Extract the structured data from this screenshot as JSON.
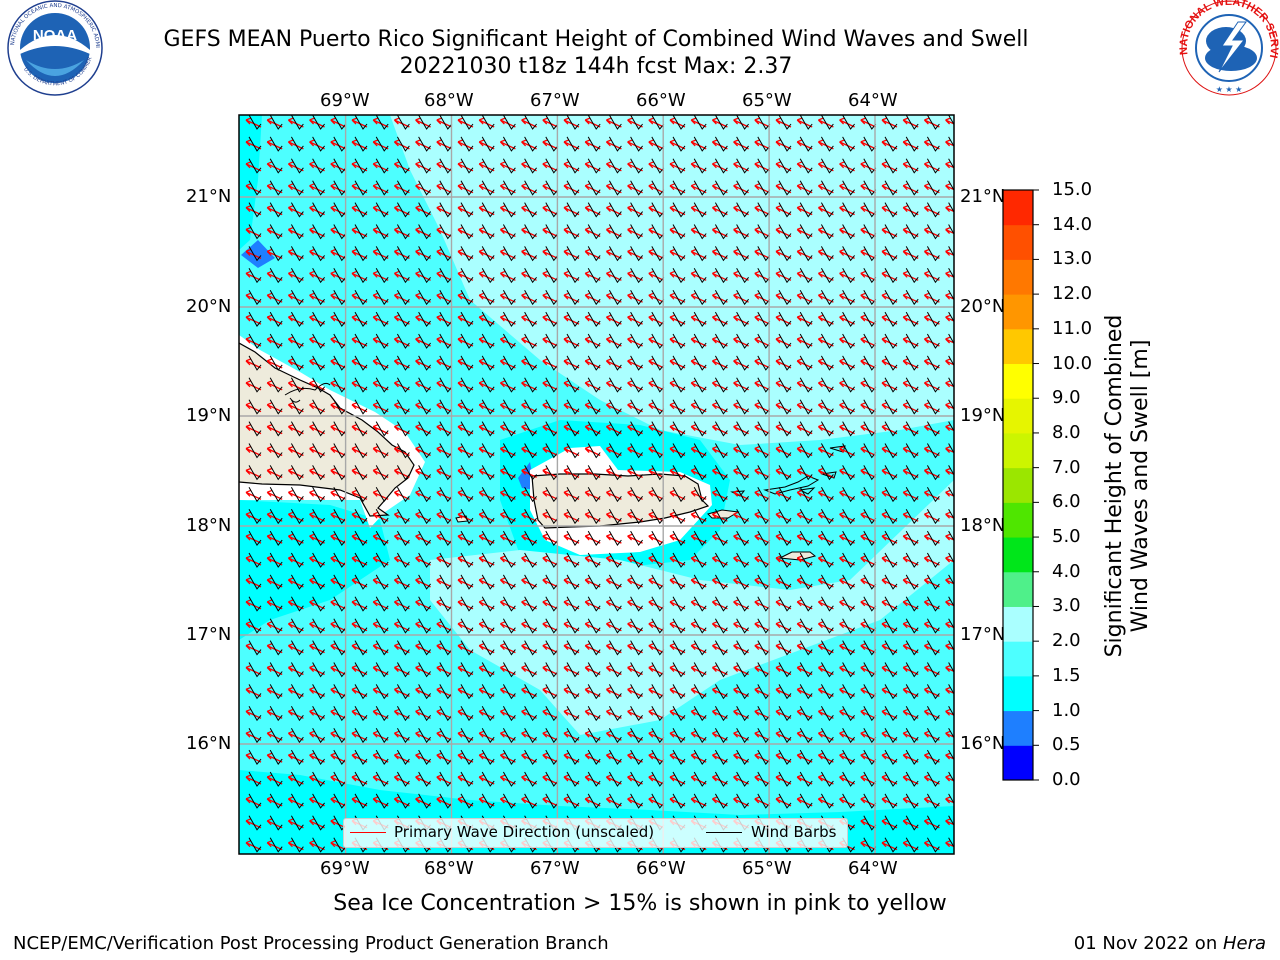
{
  "title": {
    "line1": "GEFS MEAN Puerto Rico Significant Height of Combined Wind Waves and Swell",
    "line2": "20221030 t18z 144h fcst   Max: 2.37"
  },
  "logos": {
    "left": {
      "icon": "noaa-logo",
      "text": "NOAA",
      "ring_text": "NATIONAL OCEANIC AND ATMOSPHERIC ADMINISTRATION · U.S. DEPARTMENT OF COMMERCE"
    },
    "right": {
      "icon": "nws-logo",
      "ring_text": "NATIONAL WEATHER SERVICE"
    }
  },
  "map": {
    "lon_labels": [
      "69°W",
      "68°W",
      "67°W",
      "66°W",
      "65°W",
      "64°W"
    ],
    "lat_labels": [
      "21°N",
      "20°N",
      "19°N",
      "18°N",
      "17°N",
      "16°N"
    ],
    "lon_range": [
      -70.0,
      -63.25
    ],
    "lat_range": [
      15.0,
      21.75
    ],
    "grid": true,
    "colors": {
      "ocean_1_0_1_5": "#00ffff",
      "ocean_1_5_2_0": "#4dffff",
      "ocean_2_0_3_0": "#aaffff",
      "ocean_0_5_1_0": "#1e7fff",
      "land": "#eeebdc",
      "coast_gap": "#ffffff",
      "wave_arrow": "#ff0000",
      "wind_barb": "#000000"
    }
  },
  "legend": {
    "wave_label": "Primary Wave Direction (unscaled)",
    "wind_label": "Wind Barbs"
  },
  "colorbar": {
    "title_line1": "Significant Height of Combined",
    "title_line2": "Wind Waves and Swell [m]",
    "ticks": [
      "15.0",
      "14.0",
      "13.0",
      "12.0",
      "11.0",
      "10.0",
      "9.0",
      "8.0",
      "7.0",
      "6.0",
      "5.0",
      "4.0",
      "3.0",
      "2.0",
      "1.5",
      "1.0",
      "0.5",
      "0.0"
    ],
    "colors_bottom_to_top": [
      "#0000ff",
      "#1e7fff",
      "#00ffff",
      "#4dffff",
      "#aaffff",
      "#4ff08a",
      "#00e61a",
      "#4fe600",
      "#9be600",
      "#ccf500",
      "#e6f500",
      "#ffff00",
      "#ffc800",
      "#ff9600",
      "#ff7800",
      "#ff5000",
      "#ff2800"
    ]
  },
  "footnote": "Sea Ice Concentration > 15% is shown in pink to yellow",
  "footer": {
    "left": "NCEP/EMC/Verification Post Processing Product Generation Branch",
    "right_date": "01 Nov 2022 on ",
    "right_host": "Hera"
  }
}
